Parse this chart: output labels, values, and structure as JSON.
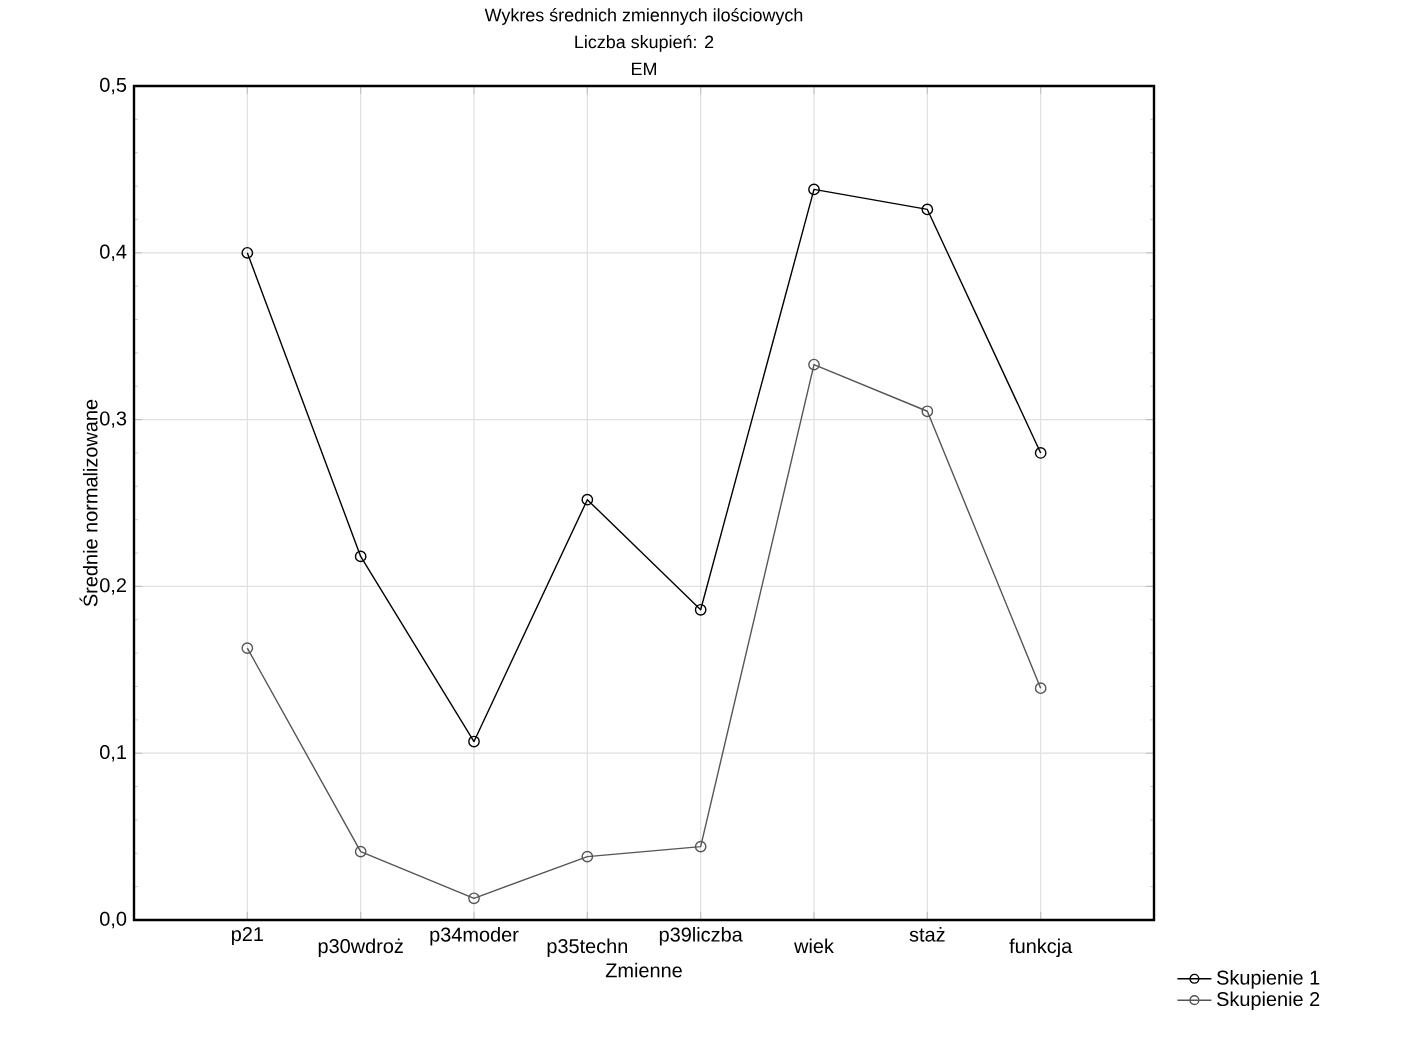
{
  "chart_data": {
    "type": "line",
    "title": "Wykres średnich zmiennych ilościowych",
    "subtitle": "Liczba skupień: 2",
    "annotations": [
      "EM"
    ],
    "xlabel": "Zmienne",
    "ylabel": "Średnie normalizowane",
    "categories": [
      "p21",
      "p30wdroż",
      "p34moder",
      "p35techn",
      "p39liczba",
      "wiek",
      "staż",
      "funkcja"
    ],
    "series": [
      {
        "name": "Skupienie 1",
        "color": "#000000",
        "values": [
          0.4,
          0.218,
          0.107,
          0.252,
          0.186,
          0.438,
          0.426,
          0.28
        ]
      },
      {
        "name": "Skupienie 2",
        "color": "#555555",
        "values": [
          0.163,
          0.041,
          0.013,
          0.038,
          0.044,
          0.333,
          0.305,
          0.139
        ]
      }
    ],
    "ylim": [
      0,
      0.5
    ],
    "yticks": [
      {
        "value": 0,
        "label": "0,0"
      },
      {
        "value": 0.1,
        "label": "0,1"
      },
      {
        "value": 0.2,
        "label": "0,2"
      },
      {
        "value": 0.3,
        "label": "0,3"
      },
      {
        "value": 0.4,
        "label": "0,4"
      },
      {
        "value": 0.5,
        "label": "0,5"
      }
    ],
    "grid": true,
    "legend": "bottom right",
    "marker": "circle",
    "line_style": "solid"
  }
}
